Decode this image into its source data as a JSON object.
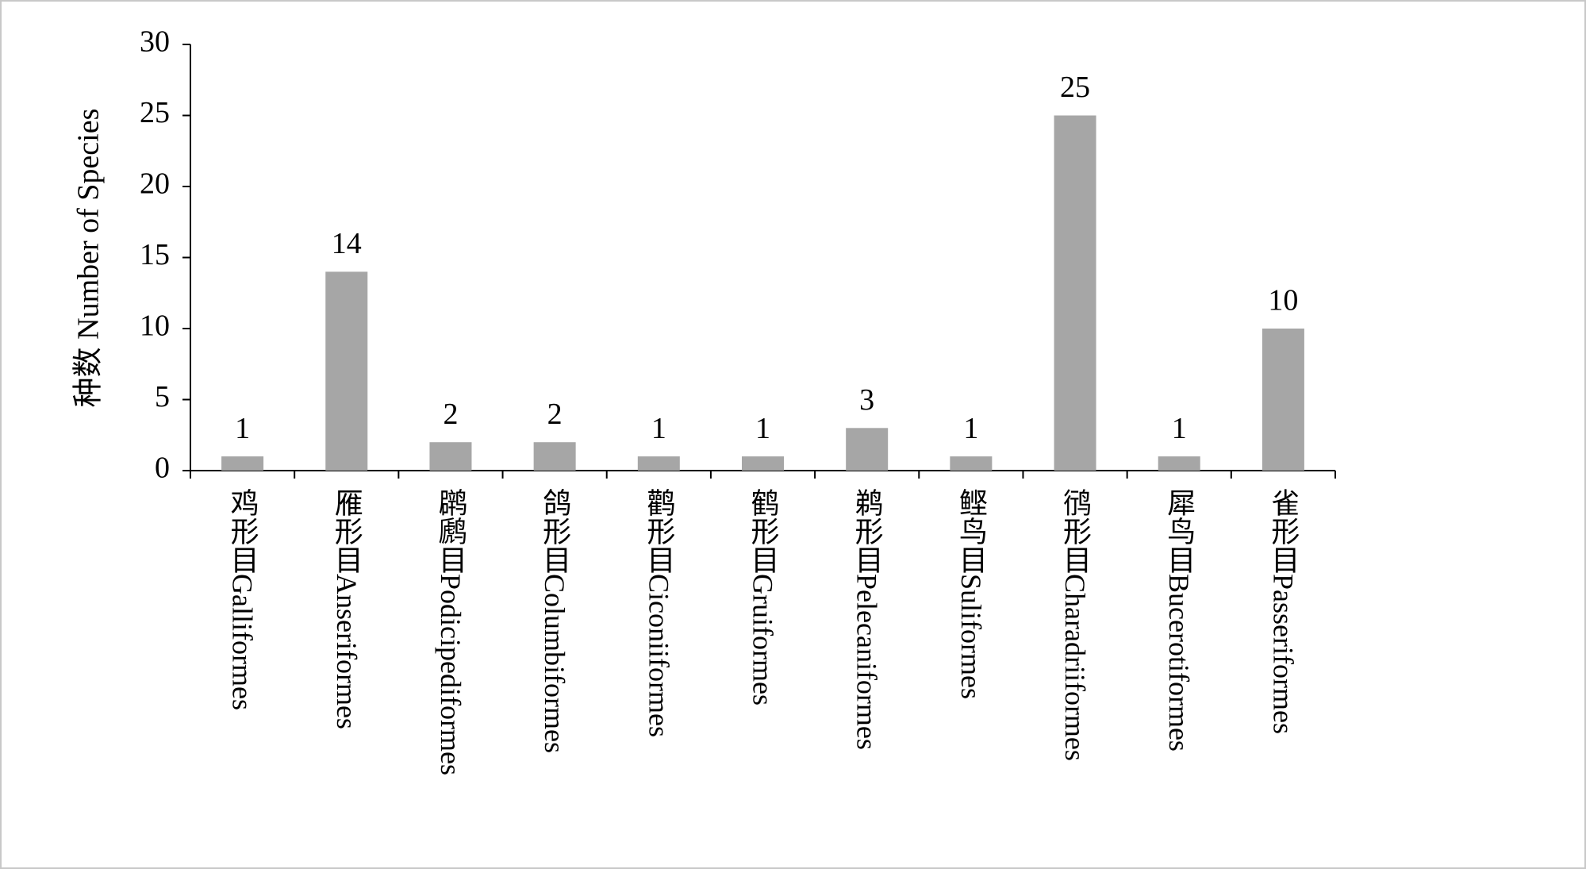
{
  "chart_data": {
    "type": "bar",
    "y_label": "种数 Number of Species",
    "categories": [
      "鸡形目Galliformes",
      "雁形目Anseriformes",
      "䴙䴘目Podicipediformes",
      "鸽形目Columbiformes",
      "鹳形目Ciconiiformes",
      "鹤形目Gruiformes",
      "鹈形目Pelecaniformes",
      "鲣鸟目Suliformes",
      "鸻形目Charadriiformes",
      "犀鸟目Bucerotiformes",
      "雀形目Passeriformes"
    ],
    "values": [
      1,
      14,
      2,
      2,
      1,
      1,
      3,
      1,
      25,
      1,
      10
    ],
    "color": "#a6a6a6",
    "ylim": [
      0,
      30
    ],
    "yticks": [
      0,
      5,
      10,
      15,
      20,
      25,
      30
    ],
    "grid": false
  }
}
